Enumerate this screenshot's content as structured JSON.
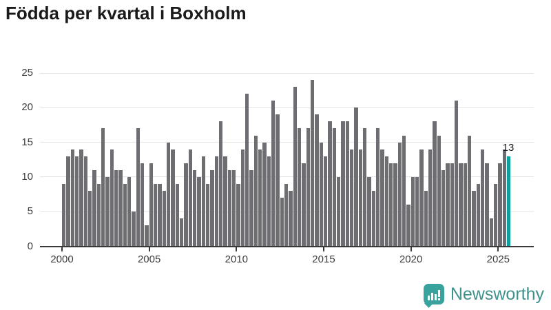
{
  "title": "Födda per kvartal i Boxholm",
  "annotation": {
    "last_value": "13"
  },
  "branding": {
    "name": "Newsworthy"
  },
  "colors": {
    "bar": "#6d6d72",
    "highlight": "#0aa2a1",
    "grid": "#e4e4e4",
    "axis": "#3a3a3a",
    "tick_label": "#3d3d3d",
    "title": "#1a1a1a",
    "logo_bubble": "#38a39c",
    "logo_text": "#3f918b"
  },
  "chart_data": {
    "type": "bar",
    "title": "Födda per kvartal i Boxholm",
    "xlabel": "",
    "ylabel": "",
    "x_start": "2000 Q1",
    "x_end": "2025 Q3",
    "frequency": "quarterly",
    "x_tick_labels": [
      "2000",
      "2005",
      "2010",
      "2015",
      "2020",
      "2025"
    ],
    "y_ticks": [
      0,
      5,
      10,
      15,
      20,
      25
    ],
    "ylim": [
      0,
      25
    ],
    "grid": "horizontal",
    "legend": "none",
    "highlight_last_bar": true,
    "last_bar_label": "13",
    "values": [
      9,
      13,
      14,
      13,
      14,
      13,
      8,
      11,
      9,
      17,
      10,
      14,
      11,
      11,
      9,
      10,
      5,
      17,
      12,
      3,
      12,
      9,
      9,
      8,
      15,
      14,
      9,
      4,
      12,
      14,
      11,
      10,
      13,
      9,
      11,
      13,
      18,
      13,
      11,
      11,
      9,
      14,
      22,
      11,
      16,
      14,
      15,
      13,
      21,
      19,
      7,
      9,
      8,
      23,
      17,
      12,
      17,
      24,
      19,
      15,
      13,
      18,
      17,
      10,
      18,
      18,
      14,
      20,
      14,
      17,
      10,
      8,
      17,
      14,
      13,
      12,
      12,
      15,
      16,
      6,
      10,
      10,
      14,
      8,
      14,
      18,
      16,
      11,
      12,
      12,
      21,
      12,
      12,
      16,
      8,
      9,
      14,
      12,
      4,
      9,
      12,
      14,
      13
    ]
  }
}
